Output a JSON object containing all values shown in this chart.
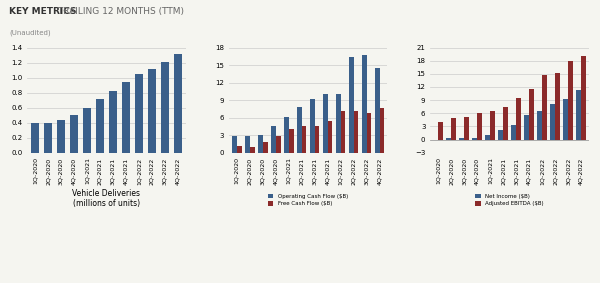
{
  "title_bold": "KEY METRICS",
  "title_rest": " TRAILING 12 MONTHS (TTM)",
  "subtitle": "(Unaudited)",
  "quarters": [
    "1Q-2020",
    "2Q-2020",
    "3Q-2020",
    "4Q-2020",
    "1Q-2021",
    "2Q-2021",
    "3Q-2021",
    "4Q-2021",
    "1Q-2022",
    "2Q-2022",
    "3Q-2022",
    "4Q-2022"
  ],
  "vehicle_deliveries": [
    0.39,
    0.39,
    0.43,
    0.5,
    0.6,
    0.71,
    0.82,
    0.94,
    1.05,
    1.11,
    1.21,
    1.31
  ],
  "operating_cf": [
    2.8,
    2.9,
    3.0,
    4.6,
    6.1,
    7.9,
    9.2,
    10.0,
    10.1,
    16.4,
    16.7,
    14.5
  ],
  "free_cf": [
    1.1,
    1.0,
    1.8,
    2.9,
    4.0,
    4.5,
    4.5,
    5.5,
    7.2,
    7.2,
    6.8,
    7.6
  ],
  "net_income": [
    -0.2,
    0.3,
    0.3,
    0.4,
    1.0,
    2.2,
    3.2,
    5.5,
    6.6,
    8.2,
    9.2,
    11.2
  ],
  "adjusted_ebitda": [
    4.0,
    4.8,
    5.2,
    6.0,
    6.5,
    7.5,
    9.5,
    11.5,
    14.8,
    15.3,
    18.0,
    19.0
  ],
  "chart1_ylim": [
    0.0,
    1.4
  ],
  "chart1_yticks": [
    0.0,
    0.2,
    0.4,
    0.6,
    0.8,
    1.0,
    1.2,
    1.4
  ],
  "chart2_ylim": [
    0,
    18
  ],
  "chart2_yticks": [
    0,
    3,
    6,
    9,
    12,
    15,
    18
  ],
  "chart3_ylim": [
    -3,
    21
  ],
  "chart3_yticks": [
    -3,
    0,
    3,
    6,
    9,
    12,
    15,
    18,
    21
  ],
  "color_blue": "#3A5F8A",
  "color_red": "#8B2A2A",
  "background": "#F5F5F0",
  "grid_color": "#CCCCCC"
}
